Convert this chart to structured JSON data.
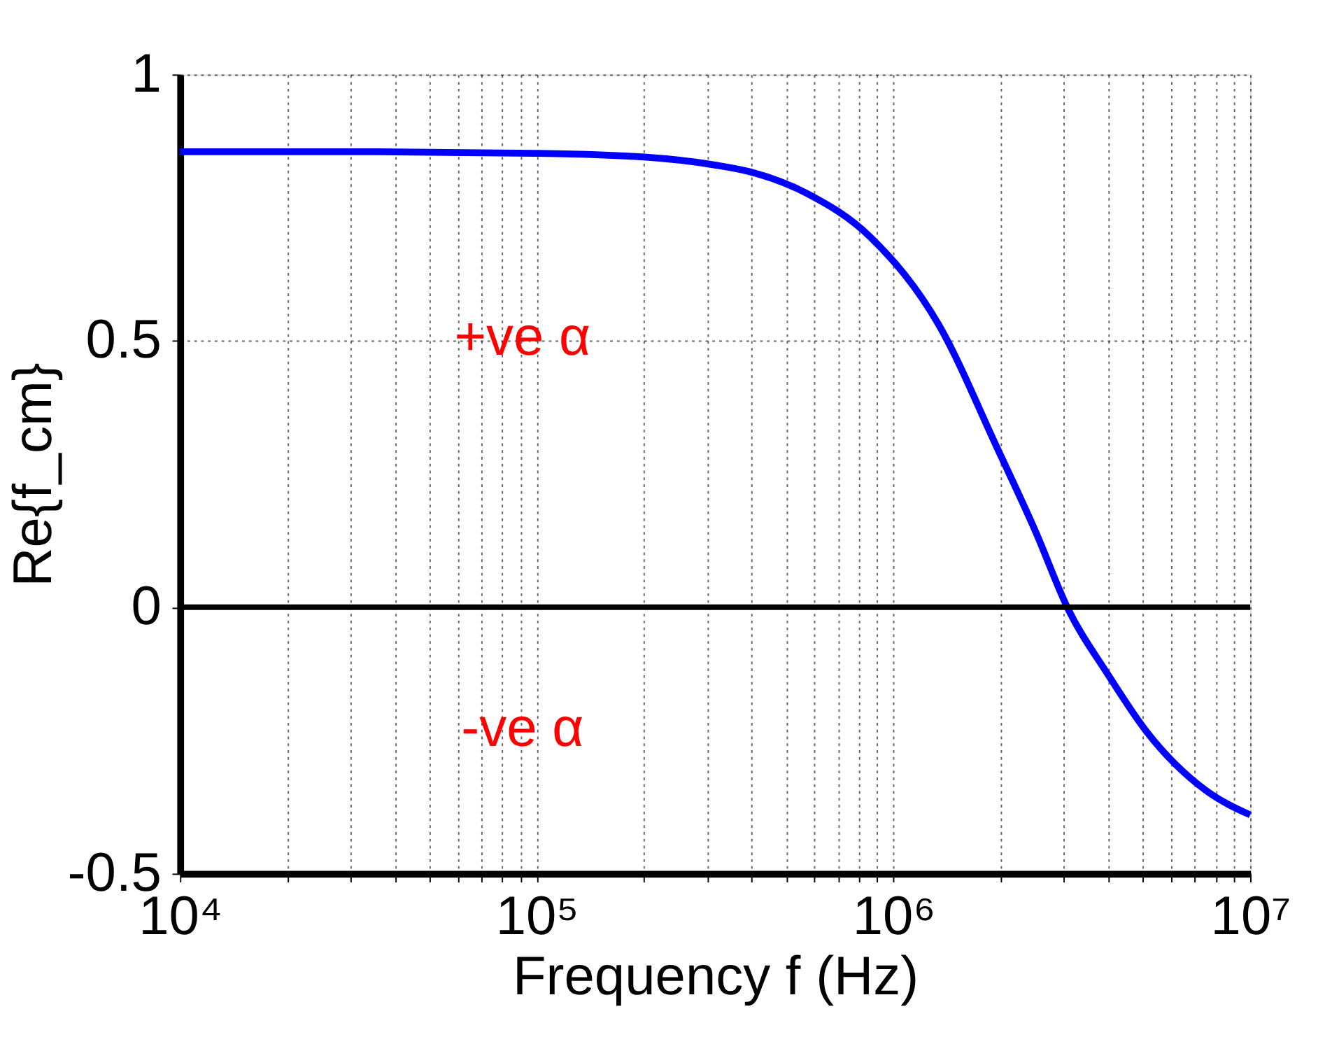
{
  "chart_data": {
    "type": "line",
    "xlabel": "Frequency f (Hz)",
    "ylabel": "Re{f_cm}",
    "x": [
      10000,
      31600,
      100000,
      200000,
      316000,
      398000,
      575000,
      861000,
      1340000,
      1950000,
      2510000,
      3070000,
      3980000,
      5130000,
      7480000,
      10000000
    ],
    "series": [
      {
        "color": "#0000ff",
        "values": [
          0.855,
          0.855,
          0.852,
          0.845,
          0.83,
          0.817,
          0.776,
          0.695,
          0.53,
          0.3,
          0.14,
          0.0,
          -0.125,
          -0.234,
          -0.343,
          -0.39
        ]
      }
    ],
    "log": "x",
    "xlim": [
      10000,
      10000000
    ],
    "ylim": [
      -0.5,
      1
    ],
    "xticks": [
      {
        "value": 10000,
        "label": "10⁴"
      },
      {
        "value": 20000,
        "label": null
      },
      {
        "value": 30000,
        "label": null
      },
      {
        "value": 40000,
        "label": null
      },
      {
        "value": 50000,
        "label": null
      },
      {
        "value": 60000,
        "label": null
      },
      {
        "value": 70000,
        "label": null
      },
      {
        "value": 80000,
        "label": null
      },
      {
        "value": 90000,
        "label": null
      },
      {
        "value": 100000,
        "label": "10⁵"
      },
      {
        "value": 200000,
        "label": null
      },
      {
        "value": 300000,
        "label": null
      },
      {
        "value": 400000,
        "label": null
      },
      {
        "value": 500000,
        "label": null
      },
      {
        "value": 600000,
        "label": null
      },
      {
        "value": 700000,
        "label": null
      },
      {
        "value": 800000,
        "label": null
      },
      {
        "value": 900000,
        "label": null
      },
      {
        "value": 1000000,
        "label": "10⁶"
      },
      {
        "value": 2000000,
        "label": null
      },
      {
        "value": 3000000,
        "label": null
      },
      {
        "value": 4000000,
        "label": null
      },
      {
        "value": 5000000,
        "label": null
      },
      {
        "value": 6000000,
        "label": null
      },
      {
        "value": 7000000,
        "label": null
      },
      {
        "value": 8000000,
        "label": null
      },
      {
        "value": 9000000,
        "label": null
      },
      {
        "value": 10000000,
        "label": "10⁷"
      }
    ],
    "yticks": [
      -0.5,
      0,
      0.5,
      1
    ],
    "grid": true,
    "marker": "none",
    "line_style": "solid",
    "ref_lines": [
      {
        "axis": "y",
        "value": 0,
        "color": "#000000",
        "line_style": "solid"
      }
    ],
    "annotations": [
      "+ve α",
      "-ve α"
    ]
  }
}
